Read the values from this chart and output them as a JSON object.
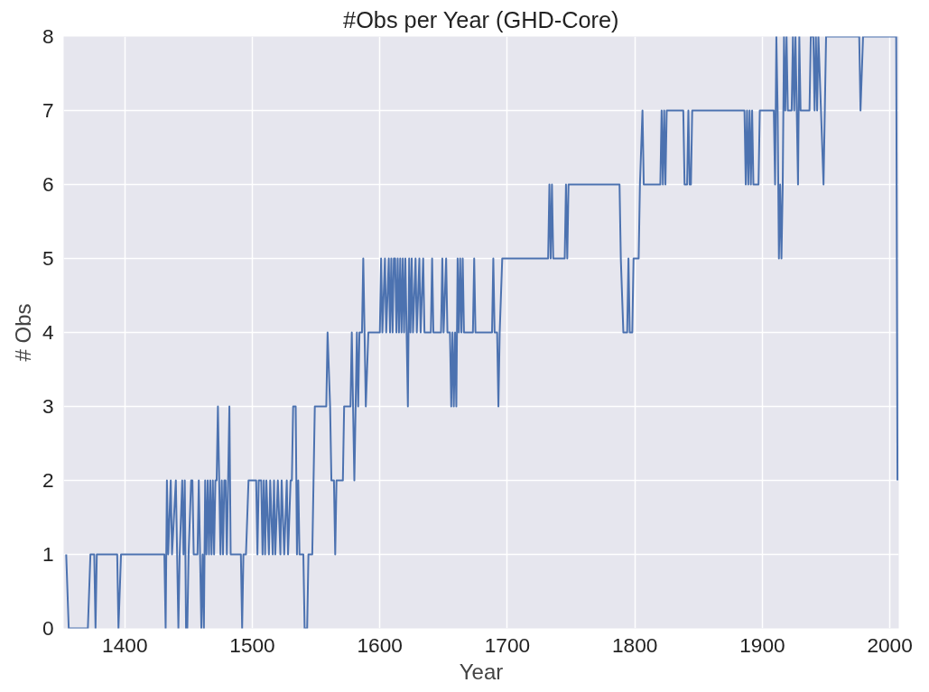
{
  "chart_data": {
    "type": "line",
    "title": "#Obs per Year (GHD-Core)",
    "xlabel": "Year",
    "ylabel": "# Obs",
    "xlim": [
      1352,
      2007
    ],
    "ylim": [
      0,
      8
    ],
    "xticks": [
      1400,
      1500,
      1600,
      1700,
      1800,
      1900,
      2000
    ],
    "yticks": [
      0,
      1,
      2,
      3,
      4,
      5,
      6,
      7,
      8
    ],
    "grid": true,
    "marker": "none",
    "line_style": "solid",
    "series": [
      {
        "color": "#4c72b0",
        "x": [
          1354,
          1356,
          1371,
          1373,
          1376,
          1377,
          1378,
          1394,
          1395,
          1397,
          1431,
          1432,
          1433,
          1434,
          1436,
          1437,
          1440,
          1441,
          1442,
          1443,
          1445,
          1446,
          1447,
          1448,
          1449,
          1450,
          1452,
          1453,
          1454,
          1457,
          1458,
          1459,
          1460,
          1461,
          1462,
          1463,
          1464,
          1465,
          1466,
          1467,
          1468,
          1469,
          1470,
          1471,
          1472,
          1473,
          1474,
          1475,
          1476,
          1477,
          1478,
          1479,
          1480,
          1482,
          1483,
          1485,
          1491,
          1492,
          1493,
          1495,
          1497,
          1503,
          1504,
          1505,
          1507,
          1508,
          1509,
          1510,
          1511,
          1513,
          1514,
          1516,
          1517,
          1518,
          1520,
          1522,
          1523,
          1525,
          1527,
          1528,
          1530,
          1531,
          1532,
          1534,
          1535,
          1536,
          1537,
          1540,
          1541,
          1543,
          1544,
          1547,
          1549,
          1558,
          1559,
          1561,
          1562,
          1564,
          1565,
          1566,
          1571,
          1572,
          1577,
          1578,
          1579,
          1580,
          1582,
          1583,
          1584,
          1586,
          1587,
          1588,
          1589,
          1591,
          1600,
          1601,
          1602,
          1604,
          1605,
          1607,
          1608,
          1609,
          1610,
          1611,
          1612,
          1613,
          1614,
          1615,
          1616,
          1617,
          1618,
          1619,
          1620,
          1621,
          1622,
          1623,
          1624,
          1625,
          1626,
          1628,
          1629,
          1631,
          1632,
          1634,
          1635,
          1640,
          1641,
          1642,
          1648,
          1649,
          1650,
          1652,
          1653,
          1655,
          1656,
          1657,
          1658,
          1659,
          1660,
          1661,
          1662,
          1663,
          1664,
          1665,
          1666,
          1673,
          1674,
          1675,
          1688,
          1689,
          1690,
          1692,
          1693,
          1694,
          1696,
          1732,
          1733,
          1734,
          1735,
          1736,
          1745,
          1746,
          1747,
          1748,
          1788,
          1789,
          1791,
          1794,
          1795,
          1796,
          1798,
          1799,
          1803,
          1804,
          1806,
          1807,
          1820,
          1821,
          1822,
          1823,
          1824,
          1825,
          1838,
          1839,
          1841,
          1842,
          1843,
          1844,
          1845,
          1886,
          1887,
          1888,
          1889,
          1890,
          1891,
          1892,
          1893,
          1897,
          1898,
          1909,
          1910,
          1911,
          1912,
          1913,
          1914,
          1915,
          1916,
          1917,
          1918,
          1919,
          1920,
          1923,
          1924,
          1925,
          1926,
          1927,
          1928,
          1929,
          1930,
          1937,
          1938,
          1940,
          1941,
          1942,
          1943,
          1944,
          1946,
          1948,
          1950,
          1976,
          1977,
          1979,
          2005,
          2006
        ],
        "values": [
          1,
          0,
          0,
          1,
          1,
          0,
          1,
          1,
          0,
          1,
          1,
          0,
          2,
          1,
          2,
          1,
          2,
          1,
          0,
          1,
          2,
          1,
          2,
          0,
          0,
          1,
          2,
          2,
          1,
          1,
          2,
          1,
          0,
          1,
          0,
          2,
          1,
          2,
          1,
          2,
          1,
          2,
          1,
          2,
          2,
          3,
          2,
          1,
          2,
          1,
          2,
          2,
          1,
          3,
          1,
          1,
          1,
          0,
          1,
          1,
          2,
          2,
          1,
          2,
          2,
          1,
          2,
          1,
          2,
          1,
          2,
          1,
          2,
          1,
          2,
          1,
          2,
          1,
          2,
          1,
          2,
          2,
          3,
          3,
          1,
          2,
          1,
          1,
          0,
          0,
          1,
          1,
          3,
          3,
          4,
          3,
          2,
          2,
          1,
          2,
          2,
          3,
          3,
          4,
          3,
          2,
          4,
          3,
          4,
          4,
          5,
          4,
          3,
          4,
          4,
          5,
          4,
          5,
          4,
          5,
          4,
          5,
          4,
          5,
          5,
          4,
          5,
          4,
          5,
          4,
          5,
          4,
          5,
          4,
          3,
          5,
          4,
          5,
          4,
          5,
          4,
          5,
          4,
          5,
          4,
          4,
          5,
          4,
          4,
          5,
          4,
          5,
          4,
          4,
          3,
          4,
          3,
          4,
          3,
          5,
          4,
          5,
          4,
          5,
          4,
          4,
          5,
          4,
          4,
          5,
          4,
          4,
          3,
          4,
          5,
          5,
          6,
          5,
          6,
          5,
          5,
          6,
          5,
          6,
          6,
          5,
          4,
          4,
          5,
          4,
          4,
          5,
          5,
          6,
          7,
          6,
          6,
          7,
          6,
          7,
          6,
          7,
          7,
          6,
          6,
          7,
          6,
          6,
          7,
          7,
          6,
          7,
          6,
          7,
          6,
          7,
          6,
          6,
          7,
          7,
          6,
          8,
          7,
          5,
          6,
          5,
          6,
          8,
          7,
          8,
          7,
          7,
          8,
          7,
          8,
          7,
          6,
          8,
          7,
          7,
          8,
          8,
          7,
          8,
          7,
          8,
          7,
          6,
          8,
          8,
          7,
          8,
          8,
          2
        ]
      }
    ]
  }
}
